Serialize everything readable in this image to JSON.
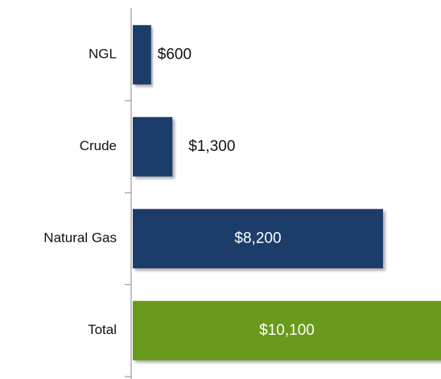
{
  "chart_data": {
    "type": "bar",
    "orientation": "horizontal",
    "categories": [
      "NGL",
      "Crude",
      "Natural Gas",
      "Total"
    ],
    "values": [
      600,
      1300,
      8200,
      10100
    ],
    "value_labels": [
      "$600",
      "$1,300",
      "$8,200",
      "$10,100"
    ],
    "colors": [
      "#1f3d6b",
      "#1f3d6b",
      "#1f3d6b",
      "#6b9a1e"
    ]
  }
}
